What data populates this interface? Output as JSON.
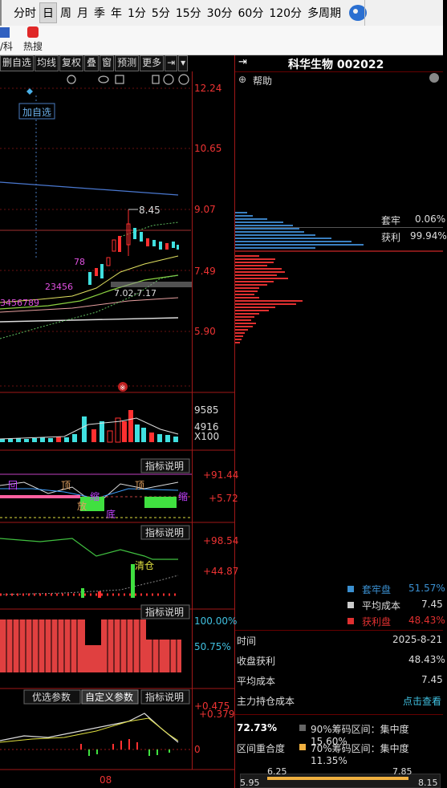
{
  "toolbar": {
    "periods": [
      "分时",
      "日",
      "周",
      "月",
      "季",
      "年",
      "1分",
      "5分",
      "15分",
      "30分",
      "60分",
      "120分",
      "多周期"
    ],
    "active_period": "日",
    "sub_left_a": "/科",
    "sub_label": "热搜"
  },
  "chart_toolbar": {
    "buttons": [
      "删自选",
      "均线",
      "复权",
      "叠",
      "窗",
      "预测",
      "更多"
    ],
    "add_watch": "加自选"
  },
  "price_axis": [
    "12.24",
    "10.65",
    "9.07",
    "7.49",
    "5.90"
  ],
  "annotations": {
    "high": "8.45",
    "range": "7.02-7.17",
    "nine_marks_a": "3456789",
    "nine_marks_b": "23456",
    "seven_eight": "78"
  },
  "volume_axis": [
    "9585",
    "4916",
    "X100"
  ],
  "indicator_btn": "指标说明",
  "ind1_axis": [
    "+91.44",
    "+5.72"
  ],
  "ind1_labels": [
    "顶",
    "底",
    "缩",
    "放",
    "回",
    "顶"
  ],
  "ind2_axis": [
    "+98.54",
    "+44.87"
  ],
  "ind2_label": "清仓",
  "ind3_axis": [
    "100.00%",
    "50.75%"
  ],
  "ind4_tabs": [
    "优选参数",
    "自定义参数",
    "指标说明"
  ],
  "ind4_axis": [
    "+0.475",
    "+0.379",
    "0"
  ],
  "date_label": "08",
  "right_panel": {
    "title": "科华生物 002022",
    "help": "帮助",
    "locked_label": "套牢",
    "locked_value": "0.06%",
    "profit_label": "获利",
    "profit_value": "99.94%",
    "legend": [
      {
        "name": "套牢盘",
        "value": "51.57%",
        "color": "#3a8fd0"
      },
      {
        "name": "平均成本",
        "value": "7.45",
        "color": "#cccccc"
      },
      {
        "name": "获利盘",
        "value": "48.43%",
        "color": "#e03030"
      }
    ],
    "rows": [
      {
        "label": "时间",
        "value": "2025-8-21"
      },
      {
        "label": "收盘获利",
        "value": "48.43%"
      },
      {
        "label": "平均成本",
        "value": "7.45"
      },
      {
        "label": "主力持仓成本",
        "value": "点击查看"
      }
    ],
    "overlap_value": "72.73%",
    "overlap_label": "区间重合度",
    "conc90": "90%筹码区间：集中度15.60%",
    "conc70": "70%筹码区间：集中度11.35%",
    "scale": [
      "5.95",
      "6.25",
      "7.85",
      "8.15"
    ]
  },
  "colors": {
    "up": "#ff3030",
    "down": "#40e0e0",
    "bg": "#000000"
  }
}
